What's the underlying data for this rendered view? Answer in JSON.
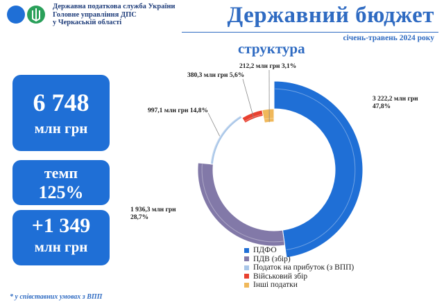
{
  "header": {
    "org_lines": [
      "Державна податкова служба України",
      "Головне управління ДПС",
      "у Черкаській області"
    ],
    "title": "Державний бюджет",
    "period": "січень-травень  2024 року",
    "subtitle": "структура"
  },
  "kpis": {
    "total_value": "6 748",
    "total_unit": "млн грн",
    "rate_label": "темп",
    "rate_value": "125%",
    "growth_value": "+1 349",
    "growth_unit": "млн грн"
  },
  "footnote": "* у співставних умовах з ВПП",
  "colors": {
    "kpi_bg": "#1f6fd6",
    "title": "#2f6bc2"
  },
  "chart_data": {
    "type": "pie",
    "subtype": "donut",
    "title": "структура",
    "series": [
      {
        "name": "ПДФО",
        "value": 3222.2,
        "percent": 47.8,
        "label_value": "3 222,2 млн грн",
        "label_percent": "47,8%",
        "color": "#1f6fd6"
      },
      {
        "name": "ПДВ (збір)",
        "value": 1936.3,
        "percent": 28.7,
        "label_value": "1 936,3 млн грн",
        "label_percent": "28,7%",
        "color": "#8279a8"
      },
      {
        "name": "Податок на прибуток (з ВПП)",
        "value": 997.1,
        "percent": 14.8,
        "label_value": "997,1 млн грн 14,8%",
        "color": "#a9c6e8"
      },
      {
        "name": "Військовий збір",
        "value": 380.3,
        "percent": 5.6,
        "label_value": "380,3 млн грн 5,6%",
        "color": "#e8402f"
      },
      {
        "name": "Інші податки",
        "value": 212.2,
        "percent": 3.1,
        "label_value": "212,2 млн грн 3,1%",
        "color": "#f0b85a"
      }
    ],
    "legend_position": "bottom"
  }
}
